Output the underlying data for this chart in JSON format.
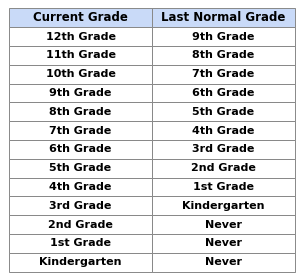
{
  "headers": [
    "Current Grade",
    "Last Normal Grade"
  ],
  "rows": [
    [
      "12th Grade",
      "9th Grade"
    ],
    [
      "11th Grade",
      "8th Grade"
    ],
    [
      "10th Grade",
      "7th Grade"
    ],
    [
      "9th Grade",
      "6th Grade"
    ],
    [
      "8th Grade",
      "5th Grade"
    ],
    [
      "7th Grade",
      "4th Grade"
    ],
    [
      "6th Grade",
      "3rd Grade"
    ],
    [
      "5th Grade",
      "2nd Grade"
    ],
    [
      "4th Grade",
      "1st Grade"
    ],
    [
      "3rd Grade",
      "Kindergarten"
    ],
    [
      "2nd Grade",
      "Never"
    ],
    [
      "1st Grade",
      "Never"
    ],
    [
      "Kindergarten",
      "Never"
    ]
  ],
  "header_bg": "#c9daf8",
  "row_bg": "#ffffff",
  "border_color": "#888888",
  "text_color": "#000000",
  "header_fontsize": 8.5,
  "row_fontsize": 8.0,
  "figsize": [
    3.04,
    2.8
  ],
  "dpi": 100
}
